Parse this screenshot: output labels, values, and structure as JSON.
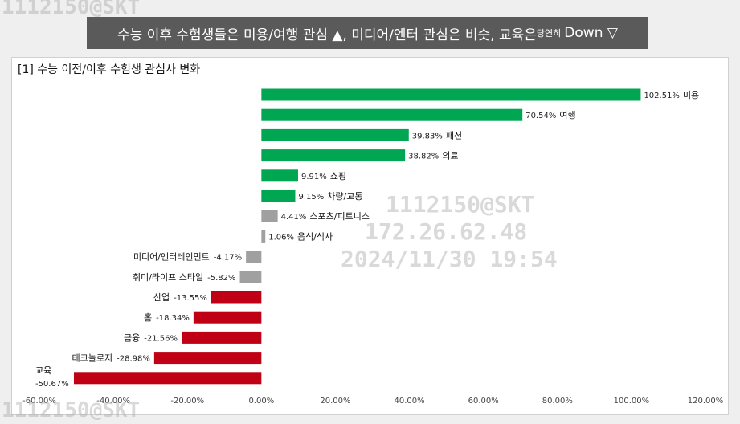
{
  "banner": {
    "main": "수능 이후 수험생들은 미용/여행 관심 ▲, 미디어/엔터 관심은 비슷, 교육은",
    "small": "당연히",
    "tail": "Down ▽"
  },
  "watermark": {
    "id": "1112150@SKT",
    "ip": "172.26.62.48",
    "datetime": "2024/11/30 19:54",
    "corner_top": "1112150@SKT",
    "corner_bottom": "1112150@SKT"
  },
  "chart_data": {
    "type": "bar",
    "orientation": "horizontal",
    "title": "[1] 수능 이전/이후 수험생 관심사 변화",
    "categories": [
      "미용",
      "여행",
      "패션",
      "의료",
      "쇼핑",
      "차량/교통",
      "스포츠/피트니스",
      "음식/식사",
      "미디어/엔터테인먼트",
      "취미/라이프 스타일",
      "산업",
      "홈",
      "금융",
      "테크놀로지",
      "교육"
    ],
    "values": [
      102.51,
      70.54,
      39.83,
      38.82,
      9.91,
      9.15,
      4.41,
      1.06,
      -4.17,
      -5.82,
      -13.55,
      -18.34,
      -21.56,
      -28.98,
      -50.67
    ],
    "value_labels": [
      "102.51%",
      "70.54%",
      "39.83%",
      "38.82%",
      "9.91%",
      "9.15%",
      "4.41%",
      "1.06%",
      "-4.17%",
      "-5.82%",
      "-13.55%",
      "-18.34%",
      "-21.56%",
      "-28.98%",
      "-50.67%"
    ],
    "bar_colors": [
      "#00a651",
      "#00a651",
      "#00a651",
      "#00a651",
      "#00a651",
      "#00a651",
      "#a0a0a0",
      "#a0a0a0",
      "#a0a0a0",
      "#a0a0a0",
      "#c00015",
      "#c00015",
      "#c00015",
      "#c00015",
      "#c00015"
    ],
    "xlim": [
      -60,
      120
    ],
    "xticks": [
      -60,
      -40,
      -20,
      0,
      20,
      40,
      60,
      80,
      100,
      120
    ],
    "xtick_labels": [
      "-60.00%",
      "-40.00%",
      "-20.00%",
      "0.00%",
      "20.00%",
      "40.00%",
      "60.00%",
      "80.00%",
      "100.00%",
      "120.00%"
    ],
    "grid": false,
    "legend": "none"
  }
}
